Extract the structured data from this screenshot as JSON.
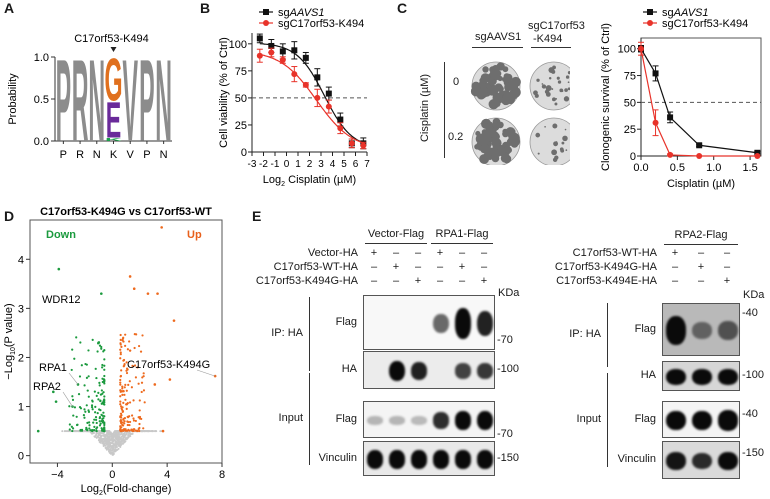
{
  "panels": {
    "A": {
      "letter": "A",
      "annotation": "C17orf53-K494",
      "ylabel": "Probability",
      "yticks": [
        "0.0",
        "0.5",
        "1.0"
      ],
      "positions": [
        "P",
        "R",
        "N",
        "K",
        "V",
        "P",
        "N"
      ]
    },
    "B": {
      "letter": "B"
    },
    "C": {
      "letter": "C",
      "col_labels": [
        "sgAAVS1",
        "sgC17orf53",
        "-K494"
      ],
      "row_axis_label": "Cisplatin (µM)",
      "row_labels": [
        "0",
        "0.2"
      ]
    },
    "D": {
      "letter": "D"
    },
    "E": {
      "letter": "E",
      "left": {
        "groups": [
          "Vector-Flag",
          "RPA1-Flag"
        ],
        "conditions": [
          {
            "label": "Vector-HA",
            "signs": [
              "+",
              "–",
              "–",
              "+",
              "–",
              "–"
            ]
          },
          {
            "label": "C17orf53-WT-HA",
            "signs": [
              "–",
              "+",
              "–",
              "–",
              "+",
              "–"
            ]
          },
          {
            "label": "C17orf53-K494G-HA",
            "signs": [
              "–",
              "–",
              "+",
              "–",
              "–",
              "+"
            ]
          }
        ],
        "kda_unit": "KDa",
        "sections": [
          "IP: HA",
          "Input"
        ],
        "blots": [
          {
            "label": "Flag",
            "marker": "70",
            "intensities": [
              0,
              0,
              0,
              0.45,
              1.0,
              0.75
            ]
          },
          {
            "label": "HA",
            "marker": "100",
            "intensities": [
              0,
              1.0,
              0.75,
              0,
              0.6,
              0.65
            ]
          },
          {
            "label": "Flag",
            "marker": "70",
            "intensities": [
              0.12,
              0.12,
              0.1,
              0.7,
              0.85,
              0.95
            ]
          },
          {
            "label": "Vinculin",
            "marker": "150",
            "intensities": [
              0.95,
              0.95,
              0.95,
              0.9,
              0.9,
              0.9
            ]
          }
        ]
      },
      "right": {
        "groups": [
          "RPA2-Flag"
        ],
        "conditions": [
          {
            "label": "C17orf53-WT-HA",
            "signs": [
              "+",
              "–",
              "–"
            ]
          },
          {
            "label": "C17orf53-K494G-HA",
            "signs": [
              "–",
              "+",
              "–"
            ]
          },
          {
            "label": "C17orf53-K494E-HA",
            "signs": [
              "–",
              "–",
              "+"
            ]
          }
        ],
        "kda_unit": "KDa",
        "sections": [
          "IP: HA",
          "Input"
        ],
        "blots": [
          {
            "label": "Flag",
            "marker": "40",
            "intensities": [
              0.95,
              0.35,
              0.45
            ]
          },
          {
            "label": "HA",
            "marker": "100",
            "intensities": [
              1.0,
              1.0,
              1.0
            ]
          },
          {
            "label": "Flag",
            "marker": "40",
            "intensities": [
              0.95,
              0.95,
              1.0
            ]
          },
          {
            "label": "Vinculin",
            "marker": "150",
            "intensities": [
              0.8,
              0.7,
              0.85
            ]
          }
        ]
      }
    }
  },
  "chart_data": [
    {
      "id": "A",
      "type": "sequence-logo",
      "title": "C17orf53-K494",
      "ylabel": "Probability",
      "ylim": [
        0,
        1
      ],
      "yticks": [
        0,
        0.5,
        1.0
      ],
      "positions": [
        "P",
        "R",
        "N",
        "K",
        "V",
        "P",
        "N"
      ],
      "stacks": [
        [
          {
            "letter": "P",
            "prob": 1.0,
            "color": "#8c8c8c"
          }
        ],
        [
          {
            "letter": "R",
            "prob": 1.0,
            "color": "#8c8c8c"
          }
        ],
        [
          {
            "letter": "N",
            "prob": 1.0,
            "color": "#8c8c8c"
          }
        ],
        [
          {
            "letter": "K",
            "prob": 0.04,
            "color": "#1aa04a"
          },
          {
            "letter": "E",
            "prob": 0.44,
            "color": "#6a2a9a"
          },
          {
            "letter": "G",
            "prob": 0.52,
            "color": "#e0701e"
          }
        ],
        [
          {
            "letter": "V",
            "prob": 1.0,
            "color": "#8c8c8c"
          }
        ],
        [
          {
            "letter": "P",
            "prob": 1.0,
            "color": "#8c8c8c"
          }
        ],
        [
          {
            "letter": "N",
            "prob": 1.0,
            "color": "#8c8c8c"
          }
        ]
      ]
    },
    {
      "id": "B",
      "type": "scatter",
      "xlabel": "Log2 Cisplatin (µM)",
      "ylabel": "Cell viability (% of Ctrl)",
      "xlim": [
        -3,
        7
      ],
      "ylim": [
        0,
        110
      ],
      "xticks": [
        -3,
        -2,
        -1,
        0,
        1,
        2,
        3,
        4,
        5,
        6,
        7
      ],
      "yticks": [
        0,
        25,
        50,
        75,
        100
      ],
      "reference_line": 50,
      "legend": "top",
      "series": [
        {
          "name": "sgAAVS1",
          "color": "#111111",
          "marker": "square",
          "x": [
            -2.32,
            -1.32,
            -0.32,
            0.68,
            1.68,
            2.68,
            3.68,
            4.68,
            5.68,
            6.68
          ],
          "y": [
            105,
            98,
            93,
            94,
            87,
            69,
            54,
            30,
            8,
            8
          ],
          "err": [
            4,
            6,
            7,
            8,
            5,
            8,
            6,
            6,
            4,
            5
          ],
          "fit_ic50_log2": 3.3,
          "fit_top": 101,
          "fit_bottom": 3,
          "fit_slope": 0.55
        },
        {
          "name": "sgC17orf53-K494",
          "color": "#e8332a",
          "marker": "circle",
          "x": [
            -2.32,
            -1.32,
            -0.32,
            0.68,
            1.68,
            2.68,
            3.68,
            4.68,
            5.68,
            6.68
          ],
          "y": [
            89,
            92,
            85,
            72,
            62,
            50,
            42,
            22,
            8,
            6
          ],
          "err": [
            6,
            4,
            3,
            7,
            2,
            8,
            6,
            5,
            4,
            3
          ],
          "fit_ic50_log2": 2.6,
          "fit_top": 94,
          "fit_bottom": 2,
          "fit_slope": 0.42
        }
      ]
    },
    {
      "id": "C",
      "type": "line",
      "xlabel": "Cisplatin (µM)",
      "ylabel": "Clonogenic survival (% of Ctrl)",
      "xlim": [
        0,
        1.65
      ],
      "ylim": [
        0,
        110
      ],
      "xticks": [
        0.0,
        0.5,
        1.0,
        1.5
      ],
      "yticks": [
        0,
        25,
        50,
        75,
        100
      ],
      "reference_line": 50,
      "legend": "top",
      "series": [
        {
          "name": "sgAAVS1",
          "color": "#111111",
          "marker": "square",
          "x": [
            0,
            0.2,
            0.4,
            0.8,
            1.6
          ],
          "y": [
            100,
            77,
            36,
            10,
            3
          ],
          "err": [
            3,
            7,
            5,
            1,
            1
          ]
        },
        {
          "name": "sgC17orf53-K494",
          "color": "#e8332a",
          "marker": "circle",
          "x": [
            0,
            0.2,
            0.4,
            0.8,
            1.6
          ],
          "y": [
            100,
            31,
            1,
            0,
            0
          ],
          "err": [
            6,
            12,
            1,
            0,
            0
          ]
        }
      ]
    },
    {
      "id": "D",
      "type": "scatter",
      "title": "C17orf53-K494G vs C17orf53-WT",
      "xlabel": "Log2(Fold-change)",
      "ylabel": "−Log10(P value)",
      "xlim": [
        -6,
        8
      ],
      "ylim": [
        -0.15,
        4.8
      ],
      "xticks": [
        -4,
        0,
        4,
        8
      ],
      "yticks": [
        0,
        1,
        2,
        3,
        4
      ],
      "legend_labels": [
        {
          "text": "Down",
          "color": "#1b9a3e"
        },
        {
          "text": "Up",
          "color": "#e8601c"
        }
      ],
      "colors": {
        "down": "#1b9a3e",
        "up": "#ee6a1e",
        "ns": "#c8c8c8"
      },
      "thresholds": {
        "fc_log2": 0.58,
        "p_log10": 0.5
      },
      "highlighted": [
        {
          "label": "WDR12",
          "x": -3.9,
          "y": 3.8
        },
        {
          "label": "RPA1",
          "x": -2.5,
          "y": 1.45
        },
        {
          "label": "RPA2",
          "x": -2.9,
          "y": 1.0
        },
        {
          "label": "C17orf53-K494G",
          "x": 7.5,
          "y": 1.62
        }
      ],
      "notable_points": [
        {
          "x": 3.6,
          "y": 4.65,
          "group": "up"
        },
        {
          "x": 1.3,
          "y": 3.65,
          "group": "up"
        },
        {
          "x": 1.6,
          "y": 3.4,
          "group": "up"
        },
        {
          "x": 2.6,
          "y": 3.3,
          "group": "up"
        },
        {
          "x": 3.3,
          "y": 3.3,
          "group": "up"
        },
        {
          "x": 4.5,
          "y": 2.75,
          "group": "up"
        },
        {
          "x": -0.8,
          "y": 3.3,
          "group": "down"
        },
        {
          "x": -1.0,
          "y": 2.3,
          "group": "down"
        },
        {
          "x": 4.2,
          "y": 1.55,
          "group": "up"
        },
        {
          "x": 3.1,
          "y": 1.45,
          "group": "up"
        },
        {
          "x": -4.3,
          "y": 1.3,
          "group": "down"
        },
        {
          "x": -4.1,
          "y": 1.1,
          "group": "down"
        },
        {
          "x": 3.7,
          "y": 0.5,
          "group": "up"
        },
        {
          "x": -5.4,
          "y": 0.5,
          "group": "down"
        }
      ]
    }
  ]
}
